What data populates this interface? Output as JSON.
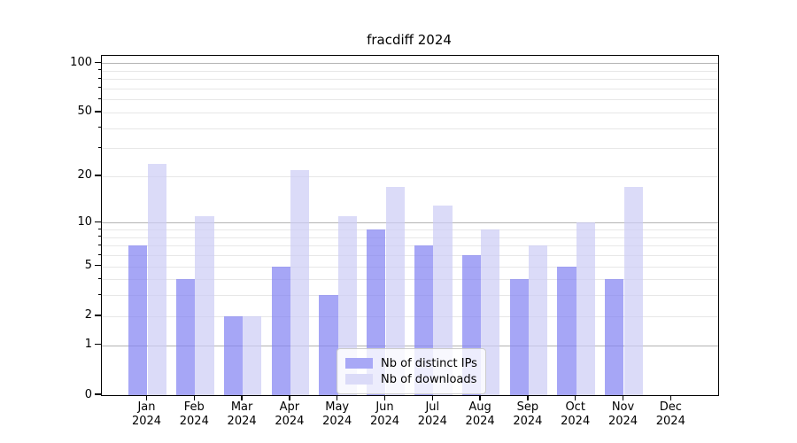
{
  "title": "fracdiff 2024",
  "chart_data": {
    "type": "bar",
    "title": "fracdiff 2024",
    "categories": [
      "Jan",
      "Feb",
      "Mar",
      "Apr",
      "May",
      "Jun",
      "Jul",
      "Aug",
      "Sep",
      "Oct",
      "Nov",
      "Dec"
    ],
    "category_year": "2024",
    "series": [
      {
        "name": "Nb of distinct IPs",
        "legend_color": "#a8a8f6",
        "base_color": "#8383f3",
        "alpha": 0.72,
        "values": [
          7,
          4,
          2,
          5,
          3,
          9,
          7,
          6,
          4,
          5,
          4,
          0
        ]
      },
      {
        "name": "Nb of downloads",
        "legend_color": "#dbdbf8",
        "base_color": "#ccccf5",
        "alpha": 0.7,
        "values": [
          24,
          11,
          2,
          22,
          11,
          17,
          13,
          9,
          7,
          10,
          17,
          0
        ]
      }
    ],
    "xlabel": "",
    "ylabel": "",
    "yscale": "log1p",
    "yticks": [
      0,
      1,
      2,
      5,
      10,
      20,
      50,
      100
    ],
    "ylim": [
      0,
      111
    ],
    "grid": {
      "major": [
        1,
        10,
        100
      ],
      "minor": [
        2,
        3,
        4,
        5,
        6,
        7,
        8,
        9,
        20,
        30,
        40,
        50,
        60,
        70,
        80,
        90
      ]
    },
    "legend_position": "lower center",
    "colors": {
      "grid_major": "#b4b4b4",
      "grid_minor": "#e7e7e7",
      "spine": "#000000",
      "text": "#000000",
      "background": "#ffffff"
    }
  }
}
